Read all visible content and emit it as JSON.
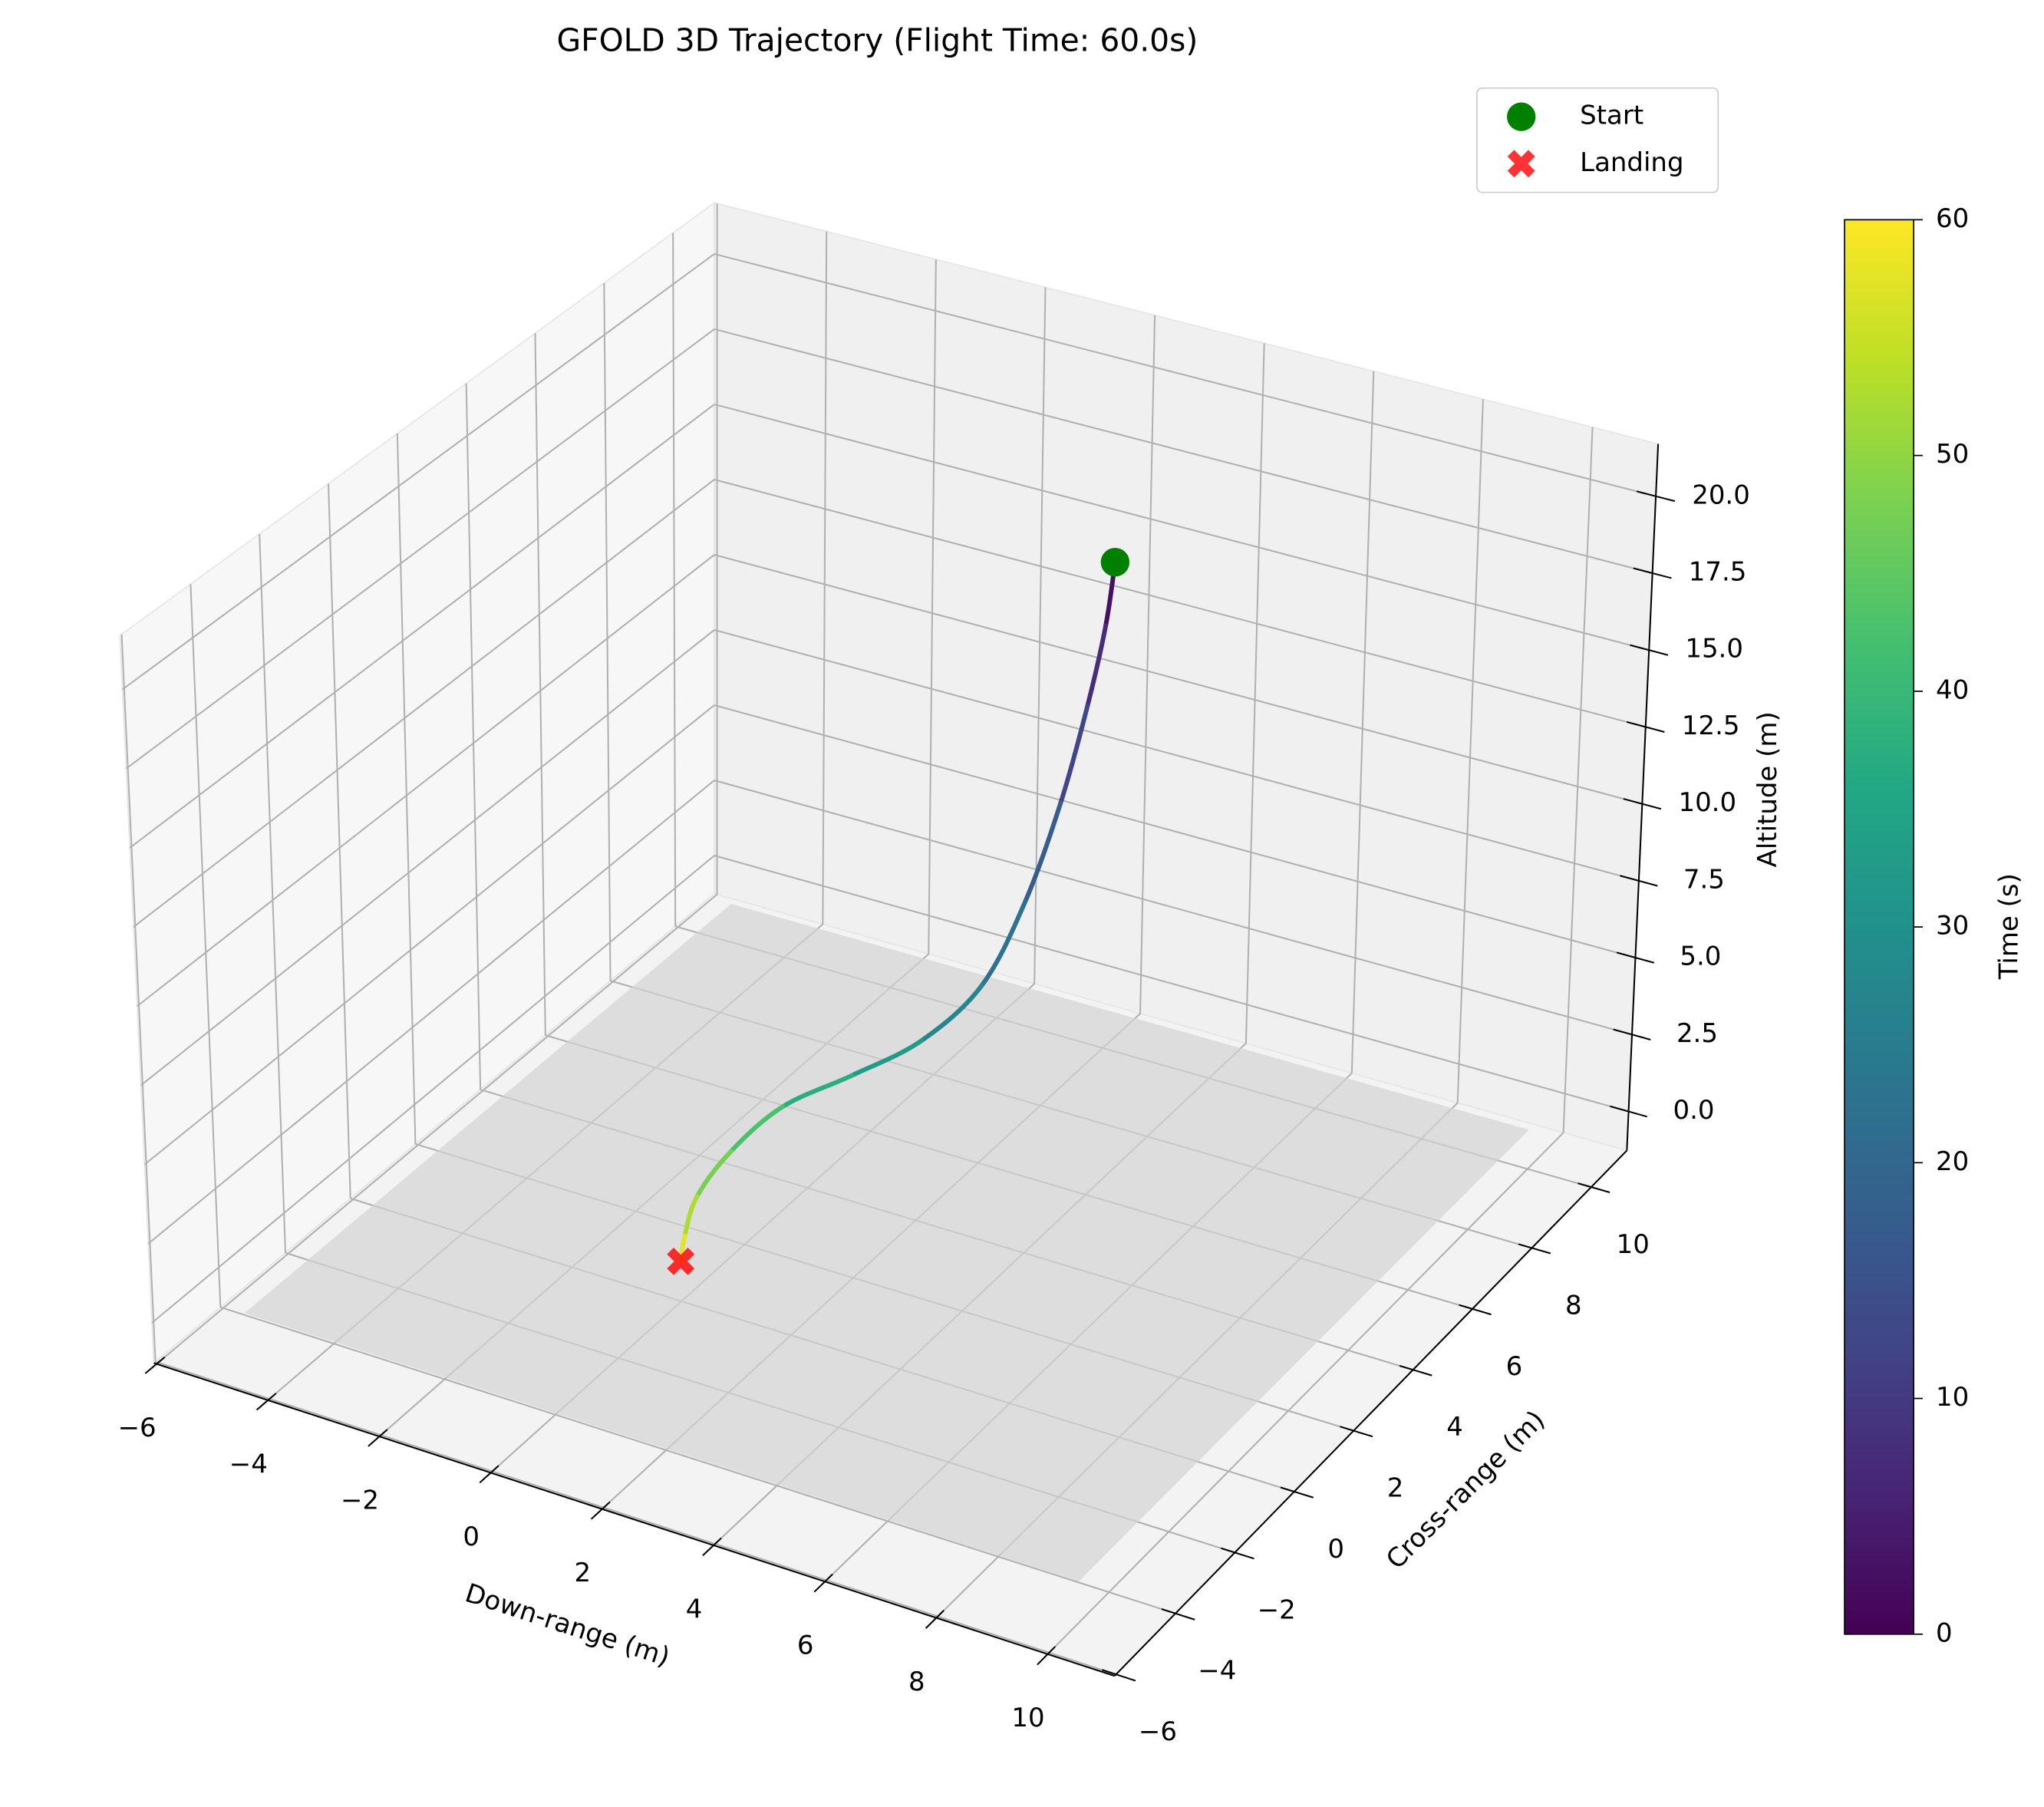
{
  "chart_data": {
    "type": "line3d",
    "title": "GFOLD 3D Trajectory (Flight Time: 60.0s)",
    "x_label": "Down-range (m)",
    "y_label": "Cross-range (m)",
    "z_label": "Altitude (m)",
    "xlim": [
      -6.05,
      11.2
    ],
    "ylim": [
      -6.05,
      11.2
    ],
    "zlim": [
      -1.27,
      21.7
    ],
    "xticks": [
      {
        "value": -6,
        "label": "−6"
      },
      {
        "value": -4,
        "label": "−4"
      },
      {
        "value": -2,
        "label": "−2"
      },
      0,
      2,
      4,
      6,
      8,
      10
    ],
    "yticks": [
      {
        "value": -6,
        "label": "−6"
      },
      {
        "value": -4,
        "label": "−4"
      },
      {
        "value": -2,
        "label": "−2"
      },
      0,
      2,
      4,
      6,
      8,
      10
    ],
    "zticks": [
      {
        "value": 0,
        "label": "0.0"
      },
      2.5,
      {
        "value": 5,
        "label": "5.0"
      },
      7.5,
      {
        "value": 10,
        "label": "10.0"
      },
      12.5,
      {
        "value": 15,
        "label": "15.0"
      },
      17.5,
      {
        "value": 20,
        "label": "20.0"
      }
    ],
    "grid": true,
    "trajectory": {
      "t": [
        0,
        5,
        10,
        15,
        20,
        25,
        30,
        35,
        40,
        45,
        50,
        55,
        60
      ],
      "x": [
        5,
        4.9,
        4.7,
        4.4,
        4,
        3.5,
        2.8,
        2,
        1.2,
        0.6,
        0.2,
        0.05,
        0
      ],
      "y": [
        5,
        4.9,
        4.7,
        4.4,
        4,
        3.5,
        2.8,
        2,
        1.2,
        0.6,
        0.2,
        0.05,
        0
      ],
      "z": [
        20.5,
        18.5,
        16,
        13,
        10,
        7.5,
        6,
        5.2,
        4.5,
        3.3,
        2,
        0.8,
        0
      ]
    },
    "colormap": "viridis",
    "colorbar": {
      "label": "Time (s)",
      "lim": [
        0,
        60
      ],
      "ticks": [
        0,
        10,
        20,
        30,
        40,
        50,
        60
      ]
    },
    "ground": {
      "xlim": [
        -5,
        10
      ],
      "ylim": [
        -5,
        10
      ],
      "z": 0,
      "color": "#d3d3d3"
    },
    "markers": [
      {
        "name": "Start",
        "color": "#008000",
        "shape": "circle",
        "x": 5,
        "y": 5,
        "z": 20.5
      },
      {
        "name": "Landing",
        "color": "#ff0000",
        "shape": "x",
        "x": 0,
        "y": 0,
        "z": 0
      }
    ],
    "legend": "upper right"
  }
}
